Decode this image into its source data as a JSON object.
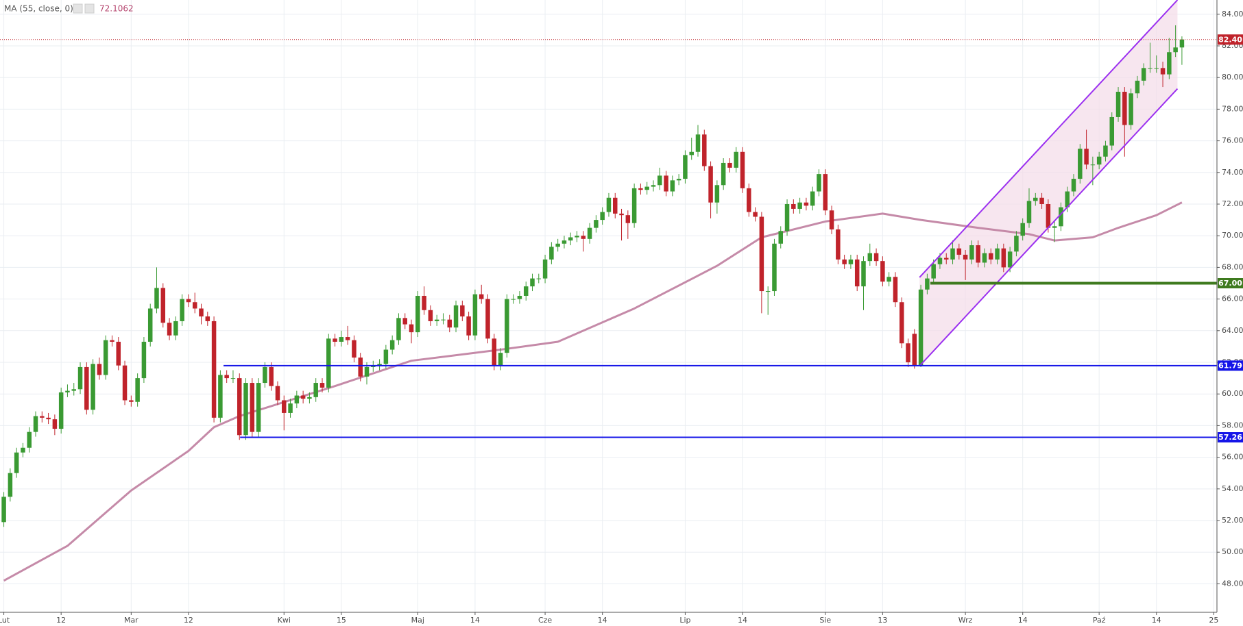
{
  "chart_data": {
    "type": "candlestick",
    "grid": true,
    "up_color": "#3a9a33",
    "down_color": "#c0232b",
    "xlim": [
      -0.6,
      190.5
    ],
    "ylim": [
      46.2,
      84.9
    ],
    "yticks": [
      {
        "value": 48,
        "label": "48.00"
      },
      {
        "value": 50,
        "label": "50.00"
      },
      {
        "value": 52,
        "label": "52.00"
      },
      {
        "value": 54,
        "label": "54.00"
      },
      {
        "value": 56,
        "label": "56.00"
      },
      {
        "value": 58,
        "label": "58.00"
      },
      {
        "value": 60,
        "label": "60.00"
      },
      {
        "value": 62,
        "label": "62.00"
      },
      {
        "value": 64,
        "label": "64.00"
      },
      {
        "value": 66,
        "label": "66.00"
      },
      {
        "value": 68,
        "label": "68.00"
      },
      {
        "value": 70,
        "label": "70.00"
      },
      {
        "value": 72,
        "label": "72.00"
      },
      {
        "value": 74,
        "label": "74.00"
      },
      {
        "value": 76,
        "label": "76.00"
      },
      {
        "value": 78,
        "label": "78.00"
      },
      {
        "value": 80,
        "label": "80.00"
      },
      {
        "value": 82,
        "label": "82.00"
      },
      {
        "value": 84,
        "label": "84.00"
      }
    ],
    "xticks": [
      {
        "value": 0,
        "label": "Lut"
      },
      {
        "value": 9,
        "label": "12"
      },
      {
        "value": 20,
        "label": "Mar"
      },
      {
        "value": 29,
        "label": "12"
      },
      {
        "value": 44,
        "label": "Kwi"
      },
      {
        "value": 53,
        "label": "15"
      },
      {
        "value": 65,
        "label": "Maj"
      },
      {
        "value": 74,
        "label": "14"
      },
      {
        "value": 85,
        "label": "Cze"
      },
      {
        "value": 94,
        "label": "14"
      },
      {
        "value": 107,
        "label": "Lip"
      },
      {
        "value": 116,
        "label": "14"
      },
      {
        "value": 129,
        "label": "Sie"
      },
      {
        "value": 138,
        "label": "13"
      },
      {
        "value": 151,
        "label": "Wrz"
      },
      {
        "value": 160,
        "label": "14"
      },
      {
        "value": 172,
        "label": "Paź"
      },
      {
        "value": 181,
        "label": "14"
      },
      {
        "value": 190,
        "label": "25"
      }
    ],
    "indicator": {
      "name": "MA (55, close, 0)",
      "color": "#c58aa8",
      "value_color": "#b5446e",
      "x": [
        0,
        10,
        20,
        29,
        33,
        37,
        52,
        64,
        78,
        87,
        99,
        112,
        119,
        129,
        138,
        144,
        153,
        161,
        165,
        171,
        175,
        181,
        185
      ],
      "values": [
        48.2,
        50.4,
        53.9,
        56.4,
        57.9,
        58.6,
        60.5,
        62.1,
        62.8,
        63.3,
        65.4,
        68.1,
        69.9,
        70.9,
        71.4,
        71.0,
        70.5,
        70.1,
        69.7,
        69.9,
        70.5,
        71.3,
        72.1062
      ]
    },
    "channel": {
      "color": "#9b2ff0",
      "fill": "#f3dbe8",
      "upper": {
        "x": [
          143.8,
          184.3
        ],
        "y": [
          67.37,
          84.9
        ]
      },
      "lower": {
        "x": [
          143.8,
          184.3
        ],
        "y": [
          61.77,
          79.29
        ]
      }
    },
    "levels": [
      {
        "value": 82.4,
        "label": "82.40",
        "color": "#c0232b",
        "style": "dotted",
        "start": -0.6
      },
      {
        "value": 67,
        "label": "67.00",
        "color": "#3e7a1e",
        "style": "thick",
        "start": 145.5
      },
      {
        "value": 61.79,
        "color": "#1515e8",
        "style": "solid",
        "start": 34.5
      },
      {
        "value": 57.26,
        "color": "#1515e8",
        "style": "solid",
        "start": 37.1
      }
    ],
    "ohlc": [
      [
        51.9,
        53.8,
        51.6,
        53.5
      ],
      [
        53.5,
        55.3,
        53.2,
        55.0
      ],
      [
        55.0,
        56.6,
        54.7,
        56.3
      ],
      [
        56.3,
        56.9,
        56.0,
        56.6
      ],
      [
        56.6,
        57.9,
        56.3,
        57.6
      ],
      [
        57.6,
        58.9,
        57.3,
        58.6
      ],
      [
        58.6,
        58.9,
        58.2,
        58.5
      ],
      [
        58.5,
        58.8,
        58.1,
        58.4
      ],
      [
        58.4,
        58.7,
        57.4,
        57.8
      ],
      [
        57.8,
        60.4,
        57.5,
        60.1
      ],
      [
        60.1,
        60.6,
        59.8,
        60.2
      ],
      [
        60.2,
        60.7,
        59.9,
        60.3
      ],
      [
        60.3,
        62.0,
        60.0,
        61.7
      ],
      [
        61.7,
        62.0,
        58.7,
        59.0
      ],
      [
        59.0,
        62.2,
        58.7,
        61.9
      ],
      [
        61.9,
        62.3,
        60.9,
        61.2
      ],
      [
        61.2,
        63.7,
        60.9,
        63.4
      ],
      [
        63.4,
        63.7,
        63.0,
        63.3
      ],
      [
        63.3,
        63.6,
        61.5,
        61.8
      ],
      [
        61.8,
        62.1,
        59.3,
        59.6
      ],
      [
        59.6,
        59.9,
        59.2,
        59.5
      ],
      [
        59.5,
        61.3,
        59.2,
        61.0
      ],
      [
        61.0,
        63.6,
        60.7,
        63.3
      ],
      [
        63.3,
        65.7,
        63.0,
        65.4
      ],
      [
        65.4,
        68.0,
        65.1,
        66.7
      ],
      [
        66.7,
        67.0,
        64.2,
        64.5
      ],
      [
        64.5,
        64.8,
        63.4,
        63.7
      ],
      [
        63.7,
        64.9,
        63.4,
        64.6
      ],
      [
        64.6,
        66.3,
        64.3,
        66.0
      ],
      [
        66.0,
        66.3,
        65.5,
        65.8
      ],
      [
        65.8,
        66.4,
        65.1,
        65.4
      ],
      [
        65.4,
        65.7,
        64.4,
        64.9
      ],
      [
        64.9,
        65.2,
        64.3,
        64.6
      ],
      [
        64.6,
        64.9,
        58.2,
        58.5
      ],
      [
        58.5,
        61.5,
        58.2,
        61.2
      ],
      [
        61.2,
        61.5,
        60.7,
        61.0
      ],
      [
        61.0,
        61.5,
        60.7,
        61.0
      ],
      [
        61.0,
        61.3,
        57.1,
        57.4
      ],
      [
        57.4,
        61.0,
        57.1,
        60.7
      ],
      [
        60.7,
        61.0,
        57.3,
        57.6
      ],
      [
        57.6,
        61.0,
        57.3,
        60.7
      ],
      [
        60.7,
        62.0,
        60.4,
        61.7
      ],
      [
        61.7,
        62.0,
        60.2,
        60.5
      ],
      [
        60.5,
        60.8,
        59.3,
        59.6
      ],
      [
        59.6,
        59.9,
        57.7,
        58.8
      ],
      [
        58.8,
        59.7,
        58.5,
        59.4
      ],
      [
        59.4,
        60.2,
        59.1,
        59.9
      ],
      [
        59.9,
        60.2,
        59.4,
        59.7
      ],
      [
        59.7,
        60.1,
        59.4,
        59.8
      ],
      [
        59.8,
        61.0,
        59.5,
        60.7
      ],
      [
        60.7,
        61.0,
        60.1,
        60.4
      ],
      [
        60.4,
        63.8,
        60.1,
        63.5
      ],
      [
        63.5,
        63.8,
        63.0,
        63.3
      ],
      [
        63.3,
        64.0,
        63.0,
        63.6
      ],
      [
        63.6,
        64.3,
        63.1,
        63.4
      ],
      [
        63.4,
        63.7,
        62.0,
        62.3
      ],
      [
        62.3,
        62.6,
        60.8,
        61.1
      ],
      [
        61.1,
        62.0,
        60.6,
        61.7
      ],
      [
        61.7,
        62.1,
        61.4,
        61.8
      ],
      [
        61.8,
        62.2,
        61.5,
        61.9
      ],
      [
        61.9,
        63.1,
        61.6,
        62.8
      ],
      [
        62.8,
        63.7,
        62.5,
        63.4
      ],
      [
        63.4,
        65.1,
        63.1,
        64.8
      ],
      [
        64.8,
        65.1,
        64.1,
        64.4
      ],
      [
        64.4,
        64.7,
        63.2,
        63.9
      ],
      [
        63.9,
        66.5,
        63.6,
        66.2
      ],
      [
        66.2,
        66.8,
        65.0,
        65.3
      ],
      [
        65.3,
        65.6,
        64.3,
        64.6
      ],
      [
        64.6,
        65.0,
        64.3,
        64.7
      ],
      [
        64.7,
        65.1,
        64.4,
        64.7
      ],
      [
        64.7,
        65.0,
        63.9,
        64.2
      ],
      [
        64.2,
        65.9,
        63.9,
        65.6
      ],
      [
        65.6,
        65.9,
        64.6,
        64.9
      ],
      [
        64.9,
        65.2,
        63.4,
        63.7
      ],
      [
        63.7,
        66.6,
        63.4,
        66.3
      ],
      [
        66.3,
        66.9,
        65.7,
        66.0
      ],
      [
        66.0,
        66.3,
        63.2,
        63.5
      ],
      [
        63.5,
        63.8,
        61.5,
        61.8
      ],
      [
        61.8,
        62.9,
        61.5,
        62.6
      ],
      [
        62.6,
        66.3,
        62.3,
        66.0
      ],
      [
        66.0,
        66.3,
        65.7,
        66.0
      ],
      [
        66.0,
        66.5,
        65.7,
        66.2
      ],
      [
        66.2,
        67.1,
        65.9,
        66.8
      ],
      [
        66.8,
        67.6,
        66.5,
        67.3
      ],
      [
        67.3,
        67.6,
        67.0,
        67.3
      ],
      [
        67.3,
        68.8,
        67.0,
        68.5
      ],
      [
        68.5,
        69.6,
        68.2,
        69.3
      ],
      [
        69.3,
        69.8,
        69.0,
        69.5
      ],
      [
        69.5,
        70.0,
        69.2,
        69.7
      ],
      [
        69.7,
        70.2,
        69.4,
        69.9
      ],
      [
        69.9,
        70.3,
        69.6,
        70.0
      ],
      [
        70.0,
        70.3,
        69.0,
        69.8
      ],
      [
        69.8,
        70.8,
        69.5,
        70.5
      ],
      [
        70.5,
        71.3,
        70.2,
        71.0
      ],
      [
        71.0,
        71.8,
        70.7,
        71.5
      ],
      [
        71.5,
        72.7,
        71.2,
        72.4
      ],
      [
        72.4,
        72.7,
        71.1,
        71.4
      ],
      [
        71.4,
        71.7,
        69.7,
        71.3
      ],
      [
        71.3,
        71.6,
        69.8,
        70.8
      ],
      [
        70.8,
        73.3,
        70.5,
        73.0
      ],
      [
        73.0,
        73.3,
        72.6,
        72.9
      ],
      [
        72.9,
        73.4,
        72.6,
        73.1
      ],
      [
        73.1,
        73.5,
        72.8,
        73.2
      ],
      [
        73.2,
        74.3,
        72.9,
        73.8
      ],
      [
        73.8,
        74.1,
        72.5,
        72.8
      ],
      [
        72.8,
        73.8,
        72.5,
        73.5
      ],
      [
        73.5,
        73.9,
        73.2,
        73.6
      ],
      [
        73.6,
        75.4,
        73.3,
        75.1
      ],
      [
        75.1,
        76.2,
        74.8,
        75.3
      ],
      [
        75.3,
        77.0,
        75.0,
        76.4
      ],
      [
        76.4,
        76.7,
        74.1,
        74.4
      ],
      [
        74.4,
        74.7,
        71.1,
        72.1
      ],
      [
        72.1,
        73.5,
        71.4,
        73.2
      ],
      [
        73.2,
        74.9,
        72.9,
        74.6
      ],
      [
        74.6,
        74.9,
        74.0,
        74.3
      ],
      [
        74.3,
        75.6,
        74.0,
        75.3
      ],
      [
        75.3,
        75.6,
        72.7,
        73.0
      ],
      [
        73.0,
        73.3,
        71.2,
        71.5
      ],
      [
        71.5,
        71.8,
        70.9,
        71.2
      ],
      [
        71.2,
        71.5,
        65.1,
        66.5
      ],
      [
        66.5,
        66.8,
        65.0,
        66.5
      ],
      [
        66.5,
        69.8,
        66.2,
        69.5
      ],
      [
        69.5,
        70.6,
        69.2,
        70.3
      ],
      [
        70.3,
        72.3,
        70.0,
        72.0
      ],
      [
        72.0,
        72.3,
        71.4,
        71.7
      ],
      [
        71.7,
        72.4,
        71.4,
        72.1
      ],
      [
        72.1,
        72.4,
        71.6,
        71.9
      ],
      [
        71.9,
        73.1,
        71.6,
        72.8
      ],
      [
        72.8,
        74.2,
        72.5,
        73.9
      ],
      [
        73.9,
        74.2,
        71.3,
        71.6
      ],
      [
        71.6,
        71.9,
        70.1,
        70.4
      ],
      [
        70.4,
        70.7,
        68.2,
        68.5
      ],
      [
        68.5,
        68.8,
        67.9,
        68.2
      ],
      [
        68.2,
        68.8,
        67.9,
        68.5
      ],
      [
        68.5,
        68.8,
        66.5,
        66.8
      ],
      [
        66.8,
        68.7,
        65.3,
        68.4
      ],
      [
        68.4,
        69.5,
        68.1,
        68.9
      ],
      [
        68.9,
        69.2,
        68.1,
        68.4
      ],
      [
        68.4,
        68.7,
        66.8,
        67.1
      ],
      [
        67.1,
        67.7,
        66.8,
        67.4
      ],
      [
        67.4,
        67.7,
        65.5,
        65.8
      ],
      [
        65.8,
        66.1,
        62.9,
        63.2
      ],
      [
        63.2,
        63.5,
        61.7,
        62.0
      ],
      [
        63.8,
        64.1,
        61.6,
        61.8
      ],
      [
        61.8,
        66.9,
        61.7,
        66.6
      ],
      [
        66.6,
        67.6,
        66.3,
        67.3
      ],
      [
        67.3,
        68.5,
        67.0,
        68.2
      ],
      [
        68.2,
        68.9,
        67.9,
        68.6
      ],
      [
        68.6,
        68.9,
        68.2,
        68.5
      ],
      [
        68.5,
        69.7,
        68.2,
        69.2
      ],
      [
        69.2,
        69.5,
        68.5,
        68.8
      ],
      [
        68.8,
        69.1,
        67.2,
        68.5
      ],
      [
        68.5,
        69.7,
        68.2,
        69.4
      ],
      [
        69.4,
        69.7,
        68.0,
        68.3
      ],
      [
        68.3,
        69.2,
        68.0,
        68.9
      ],
      [
        68.9,
        69.2,
        68.2,
        68.5
      ],
      [
        68.5,
        69.5,
        68.2,
        69.2
      ],
      [
        69.2,
        69.5,
        67.7,
        68.0
      ],
      [
        68.0,
        69.3,
        67.7,
        69.0
      ],
      [
        69.0,
        70.3,
        68.7,
        70.0
      ],
      [
        70.0,
        71.1,
        69.7,
        70.8
      ],
      [
        70.8,
        73.0,
        70.5,
        72.2
      ],
      [
        72.2,
        72.7,
        71.9,
        72.4
      ],
      [
        72.4,
        72.7,
        71.7,
        72.0
      ],
      [
        72.0,
        72.3,
        70.2,
        70.5
      ],
      [
        70.5,
        71.0,
        69.6,
        70.6
      ],
      [
        70.6,
        72.1,
        70.3,
        71.8
      ],
      [
        71.8,
        73.1,
        71.5,
        72.8
      ],
      [
        72.8,
        73.9,
        72.5,
        73.6
      ],
      [
        73.6,
        75.8,
        73.3,
        75.5
      ],
      [
        75.5,
        76.7,
        74.2,
        74.5
      ],
      [
        74.5,
        75.0,
        73.2,
        74.5
      ],
      [
        74.5,
        75.3,
        74.2,
        75.0
      ],
      [
        75.0,
        76.0,
        74.7,
        75.7
      ],
      [
        75.7,
        77.8,
        75.4,
        77.5
      ],
      [
        77.5,
        79.4,
        77.2,
        79.1
      ],
      [
        79.1,
        79.4,
        75.0,
        77.0
      ],
      [
        77.0,
        79.3,
        76.7,
        79.0
      ],
      [
        79.0,
        80.1,
        78.7,
        79.8
      ],
      [
        79.8,
        80.9,
        79.5,
        80.6
      ],
      [
        80.6,
        82.2,
        80.3,
        80.6
      ],
      [
        80.6,
        81.4,
        80.3,
        80.6
      ],
      [
        80.6,
        81.0,
        79.4,
        80.2
      ],
      [
        80.2,
        82.5,
        79.9,
        81.6
      ],
      [
        81.6,
        83.3,
        81.3,
        81.9
      ],
      [
        81.9,
        82.6,
        80.8,
        82.4
      ]
    ]
  }
}
